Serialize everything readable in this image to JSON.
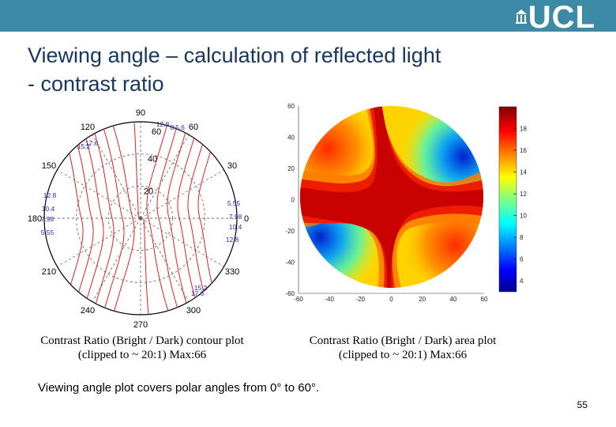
{
  "header": {
    "logo_text": "UCL",
    "bar_color": "#3d8aa6"
  },
  "slide": {
    "title_line1": "Viewing angle – calculation of reflected light",
    "title_line2": "- contrast ratio",
    "title_color": "#17375e",
    "footnote": "Viewing angle plot covers polar angles from 0° to 60°.",
    "page_number": "55"
  },
  "polar_plot": {
    "angle_labels": [
      "90",
      "60",
      "30",
      "0",
      "330",
      "300",
      "270",
      "240",
      "210",
      "180",
      "150",
      "120"
    ],
    "radius_labels": [
      "60",
      "40",
      "20"
    ],
    "contour_labels": [
      "12.8",
      "8",
      "5.6",
      "17.6",
      "15.2",
      "12.8",
      "10.4",
      "7.98",
      "5.55",
      "5.55",
      "7.98",
      "10.4",
      "12.8",
      "15.2",
      "17.6"
    ],
    "caption_line1": "Contrast Ratio (Bright / Dark) contour plot",
    "caption_line2": "(clipped to ~ 20:1) Max:66"
  },
  "area_plot": {
    "y_ticks": [
      "60",
      "40",
      "20",
      "0",
      "-20",
      "-40",
      "-60"
    ],
    "x_ticks": [
      "-60",
      "-40",
      "-20",
      "0",
      "20",
      "40",
      "60"
    ],
    "colorbar_ticks": [
      "18",
      "16",
      "14",
      "12",
      "10",
      "8",
      "6",
      "4"
    ],
    "caption_line1": "Contrast Ratio (Bright / Dark) area plot",
    "caption_line2": "(clipped to ~ 20:1) Max:66"
  },
  "chart_data": [
    {
      "type": "polar-contour",
      "title": "Contrast Ratio (Bright / Dark) contour plot",
      "angle_ticks_deg": [
        90,
        60,
        30,
        0,
        330,
        300,
        270,
        240,
        210,
        180,
        150,
        120
      ],
      "radius_ticks_deg": [
        20,
        40,
        60
      ],
      "radius_max_deg": 60,
      "contour_levels": [
        5.55,
        7.98,
        10.4,
        12.8,
        15.2,
        17.6
      ],
      "clip": 20,
      "max": 66
    },
    {
      "type": "heatmap",
      "title": "Contrast Ratio (Bright / Dark) area plot",
      "xlim": [
        -60,
        60
      ],
      "ylim": [
        -60,
        60
      ],
      "colorbar_range": [
        3,
        20
      ],
      "colorbar_ticks": [
        4,
        6,
        8,
        10,
        12,
        14,
        16,
        18
      ],
      "clip": 20,
      "max": 66
    }
  ]
}
